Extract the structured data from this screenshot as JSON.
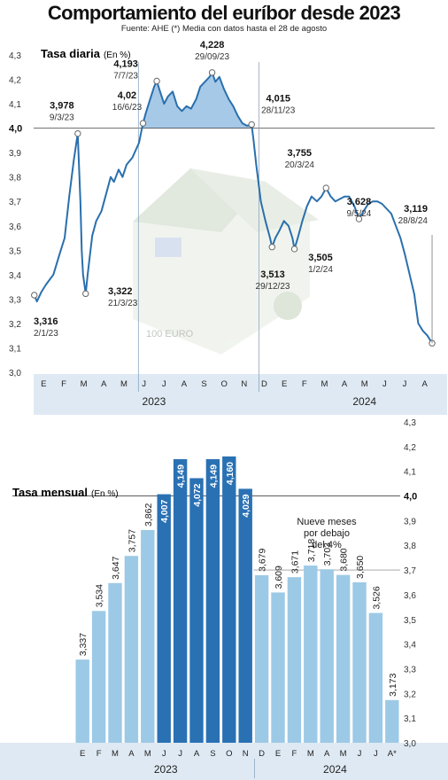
{
  "title": "Comportamiento del euríbor desde 2023",
  "source": "Fuente: AHE (*) Media con datos hasta el 28 de agosto",
  "colors": {
    "line": "#2a6fad",
    "area_above": "#9cc3e4",
    "bar_light": "#9cc9e6",
    "bar_dark": "#2a71b4",
    "band": "#dfe9f3",
    "annotation_line": "#666666"
  },
  "chart_data": [
    {
      "type": "line",
      "title": "Tasa diaria",
      "title_unit": "(En %)",
      "ylim": [
        3.0,
        4.3
      ],
      "y_ticks": [
        "3,0",
        "3,1",
        "3,2",
        "3,3",
        "3,4",
        "3,5",
        "3,6",
        "3,7",
        "3,8",
        "3,9",
        "4,0",
        "4,1",
        "4,2",
        "4,3"
      ],
      "reference_line": 4.0,
      "x_months": [
        "E",
        "F",
        "M",
        "A",
        "M",
        "J",
        "J",
        "A",
        "S",
        "O",
        "N",
        "D",
        "E",
        "F",
        "M",
        "A",
        "M",
        "J",
        "J",
        "A"
      ],
      "years": [
        "2023",
        "2024"
      ],
      "series": [
        {
          "points": [
            [
              "2023-01-02",
              3.316
            ],
            [
              "2023-01-06",
              3.29
            ],
            [
              "2023-01-13",
              3.33
            ],
            [
              "2023-01-20",
              3.36
            ],
            [
              "2023-01-31",
              3.4
            ],
            [
              "2023-02-10",
              3.49
            ],
            [
              "2023-02-17",
              3.55
            ],
            [
              "2023-02-24",
              3.72
            ],
            [
              "2023-03-03",
              3.87
            ],
            [
              "2023-03-09",
              3.978
            ],
            [
              "2023-03-13",
              3.7
            ],
            [
              "2023-03-15",
              3.5
            ],
            [
              "2023-03-17",
              3.4
            ],
            [
              "2023-03-21",
              3.322
            ],
            [
              "2023-03-24",
              3.4
            ],
            [
              "2023-03-31",
              3.56
            ],
            [
              "2023-04-06",
              3.62
            ],
            [
              "2023-04-14",
              3.66
            ],
            [
              "2023-04-20",
              3.72
            ],
            [
              "2023-04-28",
              3.8
            ],
            [
              "2023-05-03",
              3.78
            ],
            [
              "2023-05-10",
              3.83
            ],
            [
              "2023-05-16",
              3.8
            ],
            [
              "2023-05-22",
              3.85
            ],
            [
              "2023-05-31",
              3.88
            ],
            [
              "2023-06-05",
              3.91
            ],
            [
              "2023-06-10",
              3.94
            ],
            [
              "2023-06-16",
              4.02
            ],
            [
              "2023-06-20",
              4.06
            ],
            [
              "2023-06-27",
              4.12
            ],
            [
              "2023-07-03",
              4.17
            ],
            [
              "2023-07-07",
              4.193
            ],
            [
              "2023-07-12",
              4.15
            ],
            [
              "2023-07-18",
              4.1
            ],
            [
              "2023-07-24",
              4.13
            ],
            [
              "2023-07-31",
              4.15
            ],
            [
              "2023-08-07",
              4.09
            ],
            [
              "2023-08-14",
              4.07
            ],
            [
              "2023-08-21",
              4.09
            ],
            [
              "2023-08-28",
              4.08
            ],
            [
              "2023-09-05",
              4.12
            ],
            [
              "2023-09-11",
              4.17
            ],
            [
              "2023-09-18",
              4.19
            ],
            [
              "2023-09-25",
              4.21
            ],
            [
              "2023-09-29",
              4.228
            ],
            [
              "2023-10-04",
              4.19
            ],
            [
              "2023-10-10",
              4.21
            ],
            [
              "2023-10-17",
              4.16
            ],
            [
              "2023-10-24",
              4.12
            ],
            [
              "2023-10-31",
              4.09
            ],
            [
              "2023-11-07",
              4.05
            ],
            [
              "2023-11-14",
              4.02
            ],
            [
              "2023-11-21",
              4.01
            ],
            [
              "2023-11-28",
              4.015
            ],
            [
              "2023-12-01",
              3.95
            ],
            [
              "2023-12-05",
              3.85
            ],
            [
              "2023-12-12",
              3.7
            ],
            [
              "2023-12-19",
              3.62
            ],
            [
              "2023-12-26",
              3.55
            ],
            [
              "2023-12-29",
              3.513
            ],
            [
              "2024-01-03",
              3.55
            ],
            [
              "2024-01-09",
              3.58
            ],
            [
              "2024-01-16",
              3.62
            ],
            [
              "2024-01-23",
              3.6
            ],
            [
              "2024-01-29",
              3.55
            ],
            [
              "2024-02-01",
              3.505
            ],
            [
              "2024-02-06",
              3.55
            ],
            [
              "2024-02-13",
              3.62
            ],
            [
              "2024-02-20",
              3.68
            ],
            [
              "2024-02-27",
              3.72
            ],
            [
              "2024-03-06",
              3.7
            ],
            [
              "2024-03-13",
              3.72
            ],
            [
              "2024-03-20",
              3.755
            ],
            [
              "2024-03-27",
              3.72
            ],
            [
              "2024-04-03",
              3.7
            ],
            [
              "2024-04-10",
              3.71
            ],
            [
              "2024-04-17",
              3.72
            ],
            [
              "2024-04-24",
              3.72
            ],
            [
              "2024-05-02",
              3.68
            ],
            [
              "2024-05-09",
              3.628
            ],
            [
              "2024-05-16",
              3.66
            ],
            [
              "2024-05-23",
              3.69
            ],
            [
              "2024-05-30",
              3.7
            ],
            [
              "2024-06-06",
              3.7
            ],
            [
              "2024-06-13",
              3.69
            ],
            [
              "2024-06-20",
              3.67
            ],
            [
              "2024-06-27",
              3.65
            ],
            [
              "2024-07-04",
              3.6
            ],
            [
              "2024-07-11",
              3.55
            ],
            [
              "2024-07-18",
              3.48
            ],
            [
              "2024-07-25",
              3.4
            ],
            [
              "2024-08-01",
              3.32
            ],
            [
              "2024-08-07",
              3.2
            ],
            [
              "2024-08-14",
              3.17
            ],
            [
              "2024-08-21",
              3.15
            ],
            [
              "2024-08-28",
              3.119
            ]
          ]
        }
      ],
      "annotations": [
        {
          "value": "3,316",
          "date": "2/1/23",
          "x": "2023-01-02",
          "y": 3.316
        },
        {
          "value": "3,978",
          "date": "9/3/23",
          "x": "2023-03-09",
          "y": 3.978
        },
        {
          "value": "3,322",
          "date": "21/3/23",
          "x": "2023-03-21",
          "y": 3.322
        },
        {
          "value": "4,02",
          "date": "16/6/23",
          "x": "2023-06-16",
          "y": 4.02
        },
        {
          "value": "4,193",
          "date": "7/7/23",
          "x": "2023-07-07",
          "y": 4.193
        },
        {
          "value": "4,228",
          "date": "29/09/23",
          "x": "2023-09-29",
          "y": 4.228
        },
        {
          "value": "4,015",
          "date": "28/11/23",
          "x": "2023-11-28",
          "y": 4.015
        },
        {
          "value": "3,513",
          "date": "29/12/23",
          "x": "2023-12-29",
          "y": 3.513
        },
        {
          "value": "3,505",
          "date": "1/2/24",
          "x": "2024-02-01",
          "y": 3.505
        },
        {
          "value": "3,755",
          "date": "20/3/24",
          "x": "2024-03-20",
          "y": 3.755
        },
        {
          "value": "3,628",
          "date": "9/5/24",
          "x": "2024-05-09",
          "y": 3.628
        },
        {
          "value": "3,119",
          "date": "28/8/24",
          "x": "2024-08-28",
          "y": 3.119
        }
      ]
    },
    {
      "type": "bar",
      "title": "Tasa mensual",
      "title_unit": "(En %)",
      "ylim": [
        3.0,
        4.3
      ],
      "y_ticks": [
        "3,0",
        "3,1",
        "3,2",
        "3,3",
        "3,4",
        "3,5",
        "3,6",
        "3,7",
        "3,8",
        "3,9",
        "4,0",
        "4,1",
        "4,2",
        "4,3"
      ],
      "reference_line": 4.0,
      "categories": [
        "E",
        "F",
        "M",
        "A",
        "M",
        "J",
        "J",
        "A",
        "S",
        "O",
        "N",
        "D",
        "E",
        "F",
        "M",
        "A",
        "M",
        "J",
        "J",
        "A*"
      ],
      "years": [
        "2023",
        "2024"
      ],
      "values": [
        3.337,
        3.534,
        3.647,
        3.757,
        3.862,
        4.007,
        4.149,
        4.072,
        4.149,
        4.16,
        4.029,
        3.679,
        3.609,
        3.671,
        3.718,
        3.703,
        3.68,
        3.65,
        3.526,
        3.173
      ],
      "value_labels": [
        "3,337",
        "3,534",
        "3,647",
        "3,757",
        "3,862",
        "4,007",
        "4,149",
        "4,072",
        "4,149",
        "4,160",
        "4,029",
        "3,679",
        "3,609",
        "3,671",
        "3,718",
        "3,703",
        "3,680",
        "3,650",
        "3,526",
        "3,173"
      ],
      "note": [
        "Nueve meses",
        "por debajo",
        "del 4%"
      ]
    }
  ]
}
